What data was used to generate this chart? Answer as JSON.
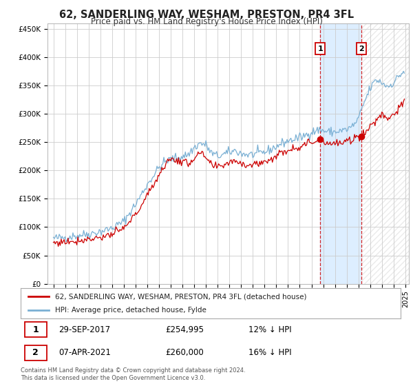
{
  "title": "62, SANDERLING WAY, WESHAM, PRESTON, PR4 3FL",
  "subtitle": "Price paid vs. HM Land Registry's House Price Index (HPI)",
  "ytick_labels": [
    "£0",
    "£50K",
    "£100K",
    "£150K",
    "£200K",
    "£250K",
    "£300K",
    "£350K",
    "£400K",
    "£450K"
  ],
  "yticks": [
    0,
    50000,
    100000,
    150000,
    200000,
    250000,
    300000,
    350000,
    400000,
    450000
  ],
  "hpi_color": "#7ab0d4",
  "price_color": "#cc0000",
  "sale1_date_label": "29-SEP-2017",
  "sale1_price": 254995,
  "sale1_hpi_pct": "12% ↓ HPI",
  "sale1_year": 2017.75,
  "sale2_date_label": "07-APR-2021",
  "sale2_price": 260000,
  "sale2_hpi_pct": "16% ↓ HPI",
  "sale2_year": 2021.27,
  "legend_label1": "62, SANDERLING WAY, WESHAM, PRESTON, PR4 3FL (detached house)",
  "legend_label2": "HPI: Average price, detached house, Fylde",
  "footer": "Contains HM Land Registry data © Crown copyright and database right 2024.\nThis data is licensed under the Open Government Licence v3.0.",
  "background_color": "#ffffff",
  "grid_color": "#cccccc",
  "shaded_color": "#ddeeff",
  "hatch_color": "#dddddd"
}
